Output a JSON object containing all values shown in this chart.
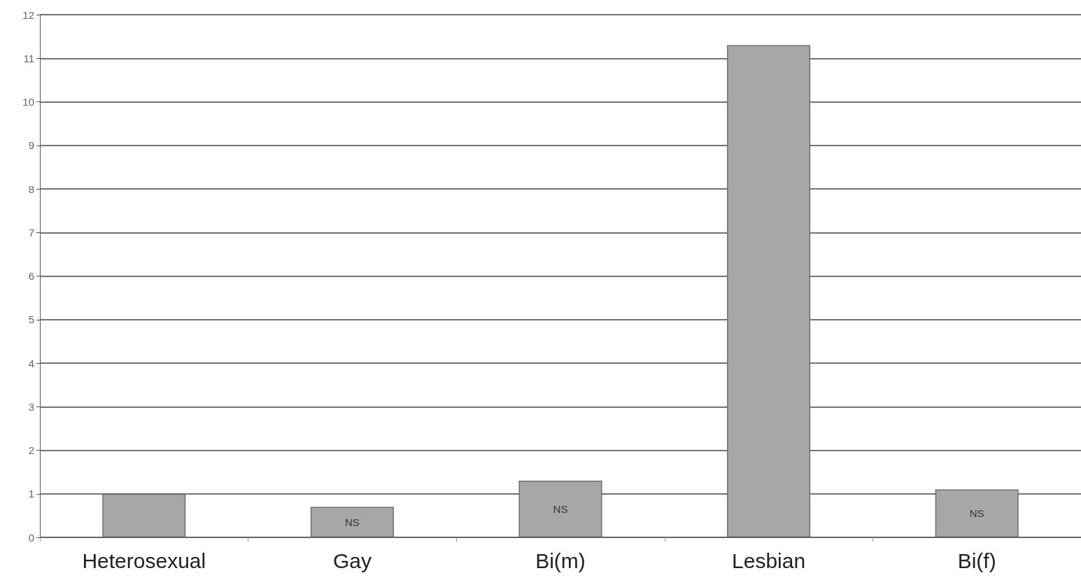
{
  "chart_data": {
    "type": "bar",
    "categories": [
      "Heterosexual",
      "Gay",
      "Bi(m)",
      "Lesbian",
      "Bi(f)"
    ],
    "values": [
      1.0,
      0.7,
      1.3,
      11.3,
      1.1
    ],
    "color": "#a7a7a9",
    "value_labels": [
      null,
      "NS",
      "NS",
      null,
      "NS"
    ],
    "ylim": [
      0,
      12
    ],
    "yticks": [
      0,
      1,
      2,
      3,
      4,
      5,
      6,
      7,
      8,
      9,
      10,
      11,
      12
    ],
    "grid": "y"
  }
}
